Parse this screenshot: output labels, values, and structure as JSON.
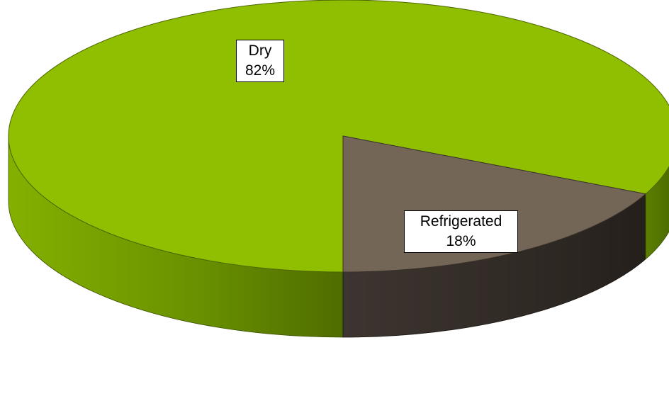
{
  "chart_data": {
    "type": "pie",
    "title": "",
    "three_d": true,
    "categories": [
      "Refrigerated",
      "Dry"
    ],
    "values": [
      18,
      82
    ],
    "labels": [
      "18%",
      "82%"
    ],
    "colors": {
      "Refrigerated": "#736656",
      "Dry": "#8fbf00"
    },
    "side_colors": {
      "Refrigerated": "#3a332c",
      "Dry": "#5f8400"
    },
    "legend": "none",
    "data_labels": "category-and-percent"
  }
}
